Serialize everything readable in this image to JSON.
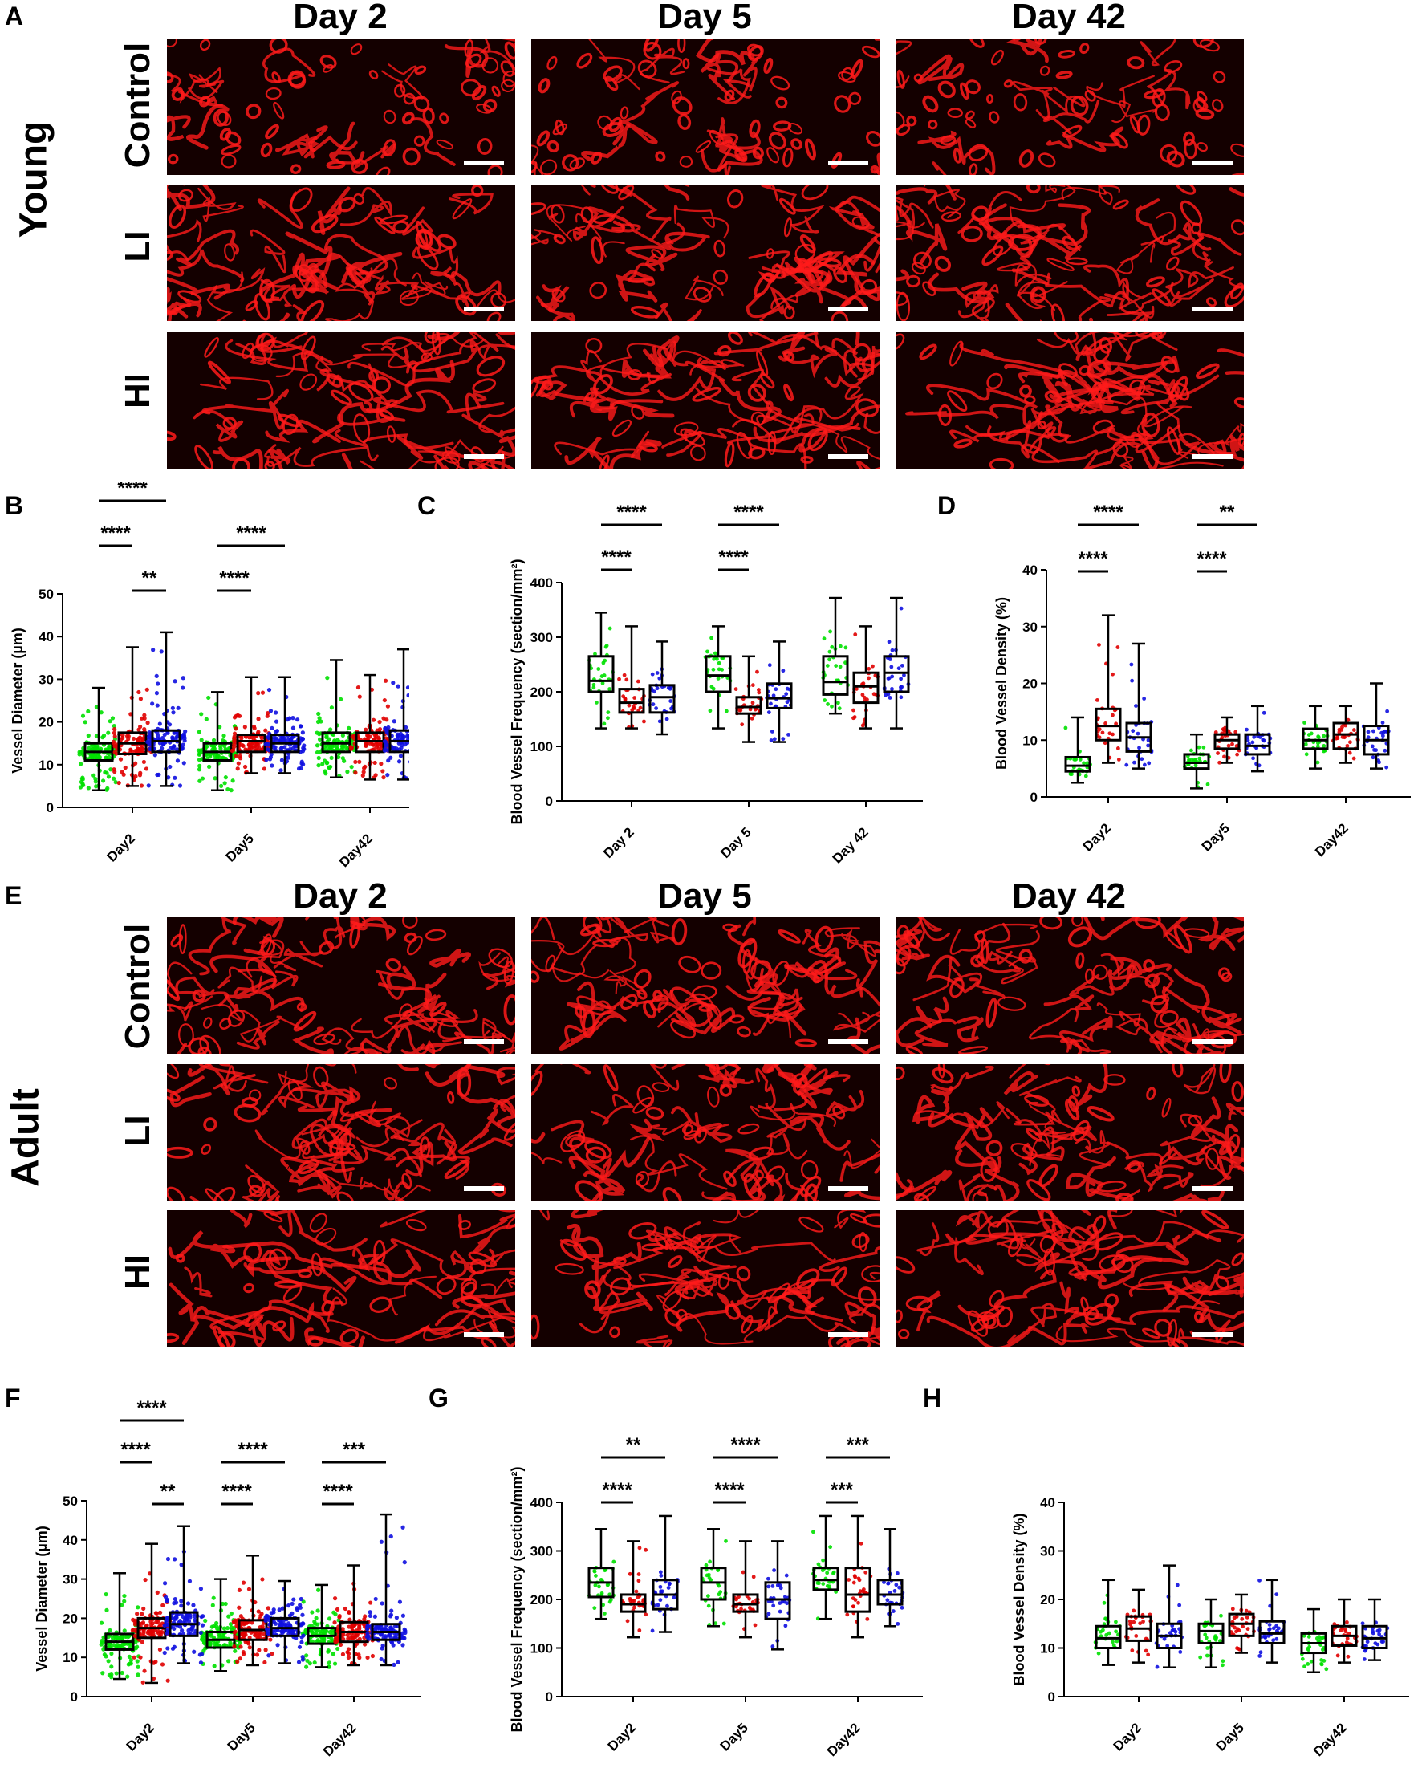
{
  "columns": [
    "Day 2",
    "Day 5",
    "Day 42"
  ],
  "rows": [
    "Control",
    "LI",
    "HI"
  ],
  "groups": {
    "young": "Young",
    "adult": "Adult"
  },
  "panels": {
    "A": "A",
    "B": "B",
    "C": "C",
    "D": "D",
    "E": "E",
    "F": "F",
    "G": "G",
    "H": "H"
  },
  "colors": {
    "control": "#00e000",
    "li": "#e00000",
    "hi": "#1010e0",
    "vessel": "#ff1a1a"
  },
  "chart_data": [
    {
      "id": "B",
      "type": "box",
      "ylabel": "Vessel Diameter (µm)",
      "ylim": [
        0,
        50
      ],
      "yticks": [
        0,
        10,
        20,
        30,
        40,
        50
      ],
      "categories": [
        "Day2",
        "Day5",
        "Day42"
      ],
      "series": [
        {
          "name": "Control",
          "boxes": [
            [
              4,
              11,
              13,
              15,
              28
            ],
            [
              4,
              11,
              13,
              15,
              27
            ],
            [
              7,
              13,
              15,
              17.5,
              34.5
            ]
          ]
        },
        {
          "name": "LI",
          "boxes": [
            [
              5,
              12.5,
              15,
              17.5,
              37.5
            ],
            [
              8,
              13,
              15.5,
              17,
              30.5
            ],
            [
              6.5,
              13,
              15.5,
              17.5,
              31
            ]
          ]
        },
        {
          "name": "HI",
          "boxes": [
            [
              5,
              13,
              15.5,
              18,
              41
            ],
            [
              8,
              13,
              15,
              17,
              30.5
            ],
            [
              6.5,
              13,
              15.5,
              18,
              37
            ]
          ]
        }
      ],
      "significance": [
        {
          "label": "****",
          "from": [
            0,
            0
          ],
          "to": [
            0,
            2
          ],
          "level": 2
        },
        {
          "label": "****",
          "from": [
            0,
            0
          ],
          "to": [
            0,
            1
          ],
          "level": 1
        },
        {
          "label": "**",
          "from": [
            0,
            1
          ],
          "to": [
            0,
            2
          ],
          "level": 0
        },
        {
          "label": "****",
          "from": [
            1,
            0
          ],
          "to": [
            1,
            2
          ],
          "level": 1
        },
        {
          "label": "****",
          "from": [
            1,
            0
          ],
          "to": [
            1,
            1
          ],
          "level": 0
        }
      ]
    },
    {
      "id": "C",
      "type": "box",
      "ylabel": "Blood Vessel Frequency (section/mm²)",
      "ylim": [
        0,
        400
      ],
      "yticks": [
        0,
        100,
        200,
        300,
        400
      ],
      "categories": [
        "Day 2",
        "Day 5",
        "Day 42"
      ],
      "series": [
        {
          "name": "Control",
          "boxes": [
            [
              133,
              200,
              220,
              265,
              345
            ],
            [
              133,
              200,
              230,
              265,
              320
            ],
            [
              160,
              195,
              218,
              265,
              372
            ]
          ]
        },
        {
          "name": "LI",
          "boxes": [
            [
              133,
              162,
              180,
              205,
              320
            ],
            [
              108,
              160,
              172,
              190,
              265
            ],
            [
              133,
              180,
              210,
              235,
              320
            ]
          ]
        },
        {
          "name": "HI",
          "boxes": [
            [
              122,
              162,
              190,
              212,
              292
            ],
            [
              108,
              170,
              188,
              215,
              292
            ],
            [
              133,
              200,
              235,
              265,
              372
            ]
          ]
        }
      ],
      "significance": [
        {
          "label": "****",
          "from": [
            0,
            0
          ],
          "to": [
            0,
            2
          ],
          "level": 1
        },
        {
          "label": "****",
          "from": [
            0,
            0
          ],
          "to": [
            0,
            1
          ],
          "level": 0
        },
        {
          "label": "****",
          "from": [
            1,
            0
          ],
          "to": [
            1,
            2
          ],
          "level": 1
        },
        {
          "label": "****",
          "from": [
            1,
            0
          ],
          "to": [
            1,
            1
          ],
          "level": 0
        }
      ]
    },
    {
      "id": "D",
      "type": "box",
      "ylabel": "Blood Vessel Density (%)",
      "ylim": [
        0,
        40
      ],
      "yticks": [
        0,
        10,
        20,
        30,
        40
      ],
      "categories": [
        "Day2",
        "Day5",
        "Day42"
      ],
      "series": [
        {
          "name": "Control",
          "boxes": [
            [
              2.5,
              4.5,
              5.5,
              7,
              14
            ],
            [
              1.5,
              5,
              6,
              7.5,
              11
            ],
            [
              5,
              8.5,
              10,
              12,
              16
            ]
          ]
        },
        {
          "name": "LI",
          "boxes": [
            [
              6,
              10,
              12.5,
              15.5,
              32
            ],
            [
              6,
              8.5,
              10,
              11,
              14
            ],
            [
              6,
              8.5,
              11,
              13,
              16
            ]
          ]
        },
        {
          "name": "HI",
          "boxes": [
            [
              5,
              8,
              10.5,
              13,
              27
            ],
            [
              4.5,
              7.5,
              9,
              11,
              16
            ],
            [
              5,
              7.5,
              10,
              12.5,
              20
            ]
          ]
        }
      ],
      "significance": [
        {
          "label": "****",
          "from": [
            0,
            0
          ],
          "to": [
            0,
            2
          ],
          "level": 1
        },
        {
          "label": "****",
          "from": [
            0,
            0
          ],
          "to": [
            0,
            1
          ],
          "level": 0
        },
        {
          "label": "**",
          "from": [
            1,
            0
          ],
          "to": [
            1,
            2
          ],
          "level": 1
        },
        {
          "label": "****",
          "from": [
            1,
            0
          ],
          "to": [
            1,
            1
          ],
          "level": 0
        }
      ]
    },
    {
      "id": "F",
      "type": "box",
      "ylabel": "Vessel Diameter (µm)",
      "ylim": [
        0,
        50
      ],
      "yticks": [
        0,
        10,
        20,
        30,
        40,
        50
      ],
      "categories": [
        "Day2",
        "Day5",
        "Day42"
      ],
      "series": [
        {
          "name": "Control",
          "boxes": [
            [
              4.5,
              12,
              14,
              16,
              31.5
            ],
            [
              6.5,
              12.5,
              14.5,
              16.5,
              30
            ],
            [
              7.5,
              13.5,
              15.5,
              17.5,
              28.5
            ]
          ]
        },
        {
          "name": "LI",
          "boxes": [
            [
              3.5,
              15,
              17.5,
              20,
              39
            ],
            [
              8,
              14.5,
              17,
              19.5,
              36
            ],
            [
              8,
              14,
              16.5,
              19,
              33.5
            ]
          ]
        },
        {
          "name": "HI",
          "boxes": [
            [
              8.5,
              15.5,
              18.5,
              21.5,
              43.5
            ],
            [
              8.5,
              15.5,
              17.5,
              20,
              29.5
            ],
            [
              8,
              14.5,
              16.5,
              18.5,
              46.5
            ]
          ]
        }
      ],
      "significance": [
        {
          "label": "****",
          "from": [
            0,
            0
          ],
          "to": [
            0,
            2
          ],
          "level": 2
        },
        {
          "label": "****",
          "from": [
            0,
            0
          ],
          "to": [
            0,
            1
          ],
          "level": 1
        },
        {
          "label": "**",
          "from": [
            0,
            1
          ],
          "to": [
            0,
            2
          ],
          "level": 0
        },
        {
          "label": "****",
          "from": [
            1,
            0
          ],
          "to": [
            1,
            2
          ],
          "level": 1
        },
        {
          "label": "****",
          "from": [
            1,
            0
          ],
          "to": [
            1,
            1
          ],
          "level": 0
        },
        {
          "label": "***",
          "from": [
            2,
            0
          ],
          "to": [
            2,
            2
          ],
          "level": 1
        },
        {
          "label": "****",
          "from": [
            2,
            0
          ],
          "to": [
            2,
            1
          ],
          "level": 0
        }
      ]
    },
    {
      "id": "G",
      "type": "box",
      "ylabel": "Blood Vessel Frequency (section/mm²)",
      "ylim": [
        0,
        400
      ],
      "yticks": [
        0,
        100,
        200,
        300,
        400
      ],
      "categories": [
        "Day2",
        "Day5",
        "Day42"
      ],
      "series": [
        {
          "name": "Control",
          "boxes": [
            [
              160,
              205,
              235,
              265,
              345
            ],
            [
              145,
              200,
              235,
              265,
              345
            ],
            [
              160,
              220,
              240,
              265,
              372
            ]
          ]
        },
        {
          "name": "LI",
          "boxes": [
            [
              122,
              175,
              190,
              210,
              320
            ],
            [
              122,
              175,
              190,
              210,
              320
            ],
            [
              122,
              175,
              210,
              265,
              372
            ]
          ]
        },
        {
          "name": "HI",
          "boxes": [
            [
              133,
              180,
              210,
              240,
              372
            ],
            [
              97,
              160,
              200,
              235,
              320
            ],
            [
              145,
              190,
              210,
              240,
              345
            ]
          ]
        }
      ],
      "significance": [
        {
          "label": "**",
          "from": [
            0,
            0
          ],
          "to": [
            0,
            2
          ],
          "level": 1
        },
        {
          "label": "****",
          "from": [
            0,
            0
          ],
          "to": [
            0,
            1
          ],
          "level": 0
        },
        {
          "label": "****",
          "from": [
            1,
            0
          ],
          "to": [
            1,
            2
          ],
          "level": 1
        },
        {
          "label": "****",
          "from": [
            1,
            0
          ],
          "to": [
            1,
            1
          ],
          "level": 0
        },
        {
          "label": "***",
          "from": [
            2,
            0
          ],
          "to": [
            2,
            2
          ],
          "level": 1
        },
        {
          "label": "***",
          "from": [
            2,
            0
          ],
          "to": [
            2,
            1
          ],
          "level": 0
        }
      ]
    },
    {
      "id": "H",
      "type": "box",
      "ylabel": "Blood Vessel Density (%)",
      "ylim": [
        0,
        40
      ],
      "yticks": [
        0,
        10,
        20,
        30,
        40
      ],
      "categories": [
        "Day2",
        "Day5",
        "Day42"
      ],
      "series": [
        {
          "name": "Control",
          "boxes": [
            [
              6.5,
              10,
              12,
              14.5,
              24
            ],
            [
              6,
              11,
              13.5,
              15,
              20
            ],
            [
              5,
              9,
              11,
              13,
              18
            ]
          ]
        },
        {
          "name": "LI",
          "boxes": [
            [
              7,
              11.5,
              14,
              16.5,
              22
            ],
            [
              9,
              12.5,
              15,
              17,
              21
            ],
            [
              7,
              10.5,
              12.5,
              14.5,
              20
            ]
          ]
        },
        {
          "name": "HI",
          "boxes": [
            [
              6,
              10,
              12.5,
              15,
              27
            ],
            [
              7,
              11,
              13,
              15.5,
              24
            ],
            [
              7.5,
              10,
              12,
              14.5,
              20
            ]
          ]
        }
      ],
      "significance": []
    }
  ]
}
